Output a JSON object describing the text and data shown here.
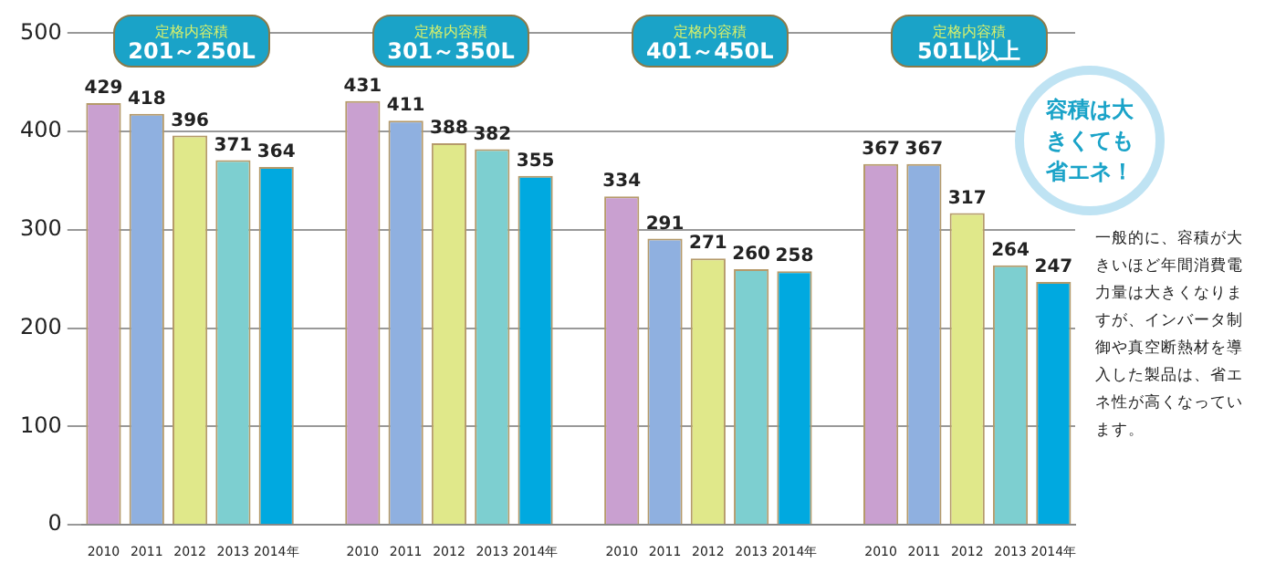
{
  "chart_data": {
    "type": "bar",
    "categories": [
      "2010",
      "2011",
      "2012",
      "2013",
      "2014年",
      null,
      "2010",
      "2011",
      "2012",
      "2013",
      "2014年",
      null,
      "2010",
      "2011",
      "2012",
      "2013",
      "2014年",
      null,
      "2010",
      "2011",
      "2012",
      "2013",
      "2014年"
    ],
    "values": [
      429,
      418,
      396,
      371,
      364,
      null,
      431,
      411,
      388,
      382,
      355,
      null,
      334,
      291,
      271,
      260,
      258,
      null,
      367,
      367,
      317,
      264,
      247
    ],
    "colors": [
      "#c9a0d0",
      "#8fb0e0",
      "#e0e88a",
      "#7dcfd0",
      "#00a9e0",
      "#ffffff",
      "#c9a0d0",
      "#8fb0e0",
      "#e0e88a",
      "#7dcfd0",
      "#00a9e0",
      "#ffffff",
      "#c9a0d0",
      "#8fb0e0",
      "#e0e88a",
      "#7dcfd0",
      "#00a9e0",
      "#ffffff",
      "#c9a0d0",
      "#8fb0e0",
      "#e0e88a",
      "#7dcfd0",
      "#00a9e0"
    ],
    "ylim": [
      0,
      500
    ],
    "yticks": [
      0,
      100,
      200,
      300,
      400,
      500
    ],
    "grid": "y",
    "data_labels": true,
    "annotations": [
      "定格内容積\n201～250L",
      "定格内容積\n301～350L",
      "定格内容積\n401～450L",
      "定格内容積\n501L以上",
      "容積は大きくても省エネ！",
      "一般的に、容積が大きいほど年間消費電力量は大きくなりますが、インバータ制御や真空断熱材を導入した製品は、省エネ性が高くなっています。"
    ]
  }
}
